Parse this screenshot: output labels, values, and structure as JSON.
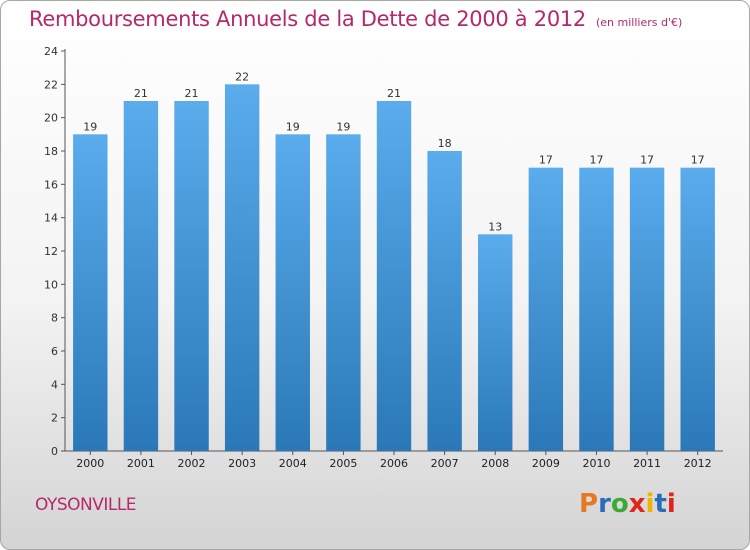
{
  "title": {
    "main": "Remboursements Annuels de la Dette de 2000 à 2012",
    "unit": "(en milliers d'€)"
  },
  "commune": "OYSONVILLE",
  "logo": {
    "text": "Proxiti",
    "letter_colors": [
      "#e87722",
      "#2a6ebb",
      "#3aa935",
      "#e2231a",
      "#f0b400",
      "#2a6ebb",
      "#e2231a"
    ]
  },
  "colors": {
    "bar_top": "#5aacec",
    "bar_bottom": "#2a78b8",
    "title": "#b5286a"
  },
  "chart_data": {
    "type": "bar",
    "categories": [
      "2000",
      "2001",
      "2002",
      "2003",
      "2004",
      "2005",
      "2006",
      "2007",
      "2008",
      "2009",
      "2010",
      "2011",
      "2012"
    ],
    "values": [
      19,
      21,
      21,
      22,
      19,
      19,
      21,
      18,
      13,
      17,
      17,
      17,
      17
    ],
    "title": "Remboursements Annuels de la Dette de 2000 à 2012",
    "xlabel": "",
    "ylabel": "",
    "ylim": [
      0,
      24
    ],
    "yticks": [
      0,
      2,
      4,
      6,
      8,
      10,
      12,
      14,
      16,
      18,
      20,
      22,
      24
    ],
    "grid": false,
    "data_labels": true
  }
}
